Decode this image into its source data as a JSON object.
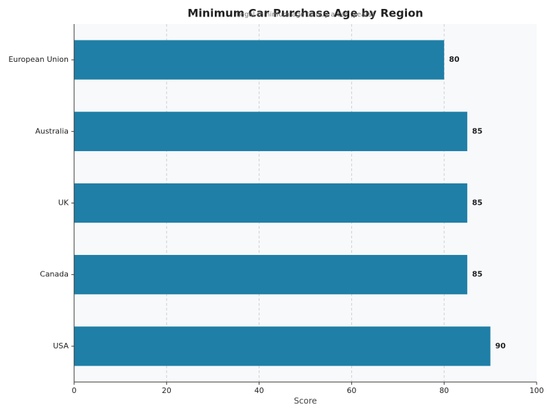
{
  "chart_data": {
    "type": "bar",
    "orientation": "horizontal",
    "title": "Minimum Car Purchase Age by Region",
    "subtitle": "Legal minimum age to buy a car (years)",
    "xlabel": "Score",
    "categories": [
      "European Union",
      "Australia",
      "UK",
      "Canada",
      "USA"
    ],
    "values": [
      80,
      85,
      85,
      85,
      90
    ],
    "color": "#1f7fa6",
    "xlim": [
      0,
      100
    ],
    "xticks": [
      0,
      20,
      40,
      60,
      80,
      100
    ],
    "grid": true
  }
}
